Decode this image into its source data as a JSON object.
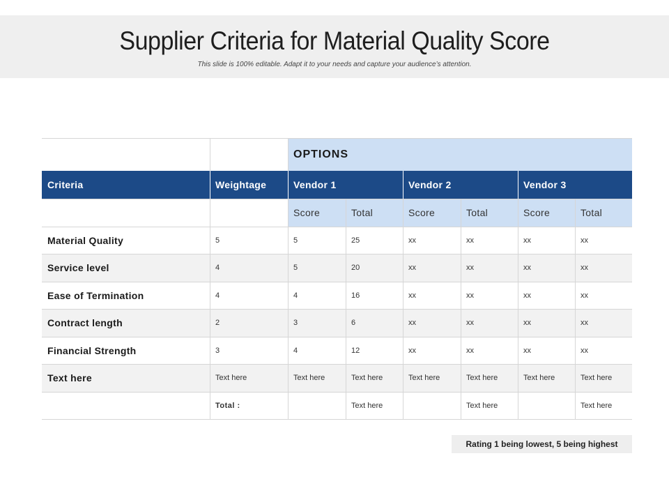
{
  "slide": {
    "title": "Supplier Criteria for Material Quality Score",
    "subtitle": "This slide is 100% editable. Adapt it to your needs and capture your audience’s attention."
  },
  "table": {
    "options_label": "OPTIONS",
    "headers": {
      "criteria": "Criteria",
      "weightage": "Weightage",
      "vendors": [
        "Vendor 1",
        "Vendor 2",
        "Vendor 3"
      ]
    },
    "subheaders": {
      "score": "Score",
      "total": "Total"
    },
    "rows": [
      {
        "criteria": "Material Quality",
        "weightage": "5",
        "values": [
          "5",
          "25",
          "xx",
          "xx",
          "xx",
          "xx"
        ]
      },
      {
        "criteria": "Service level",
        "weightage": "4",
        "values": [
          "5",
          "20",
          "xx",
          "xx",
          "xx",
          "xx"
        ]
      },
      {
        "criteria": "Ease of Termination",
        "weightage": "4",
        "values": [
          "4",
          "16",
          "xx",
          "xx",
          "xx",
          "xx"
        ]
      },
      {
        "criteria": "Contract length",
        "weightage": "2",
        "values": [
          "3",
          "6",
          "xx",
          "xx",
          "xx",
          "xx"
        ]
      },
      {
        "criteria": "Financial Strength",
        "weightage": "3",
        "values": [
          "4",
          "12",
          "xx",
          "xx",
          "xx",
          "xx"
        ]
      },
      {
        "criteria": "Text here",
        "weightage": "Text here",
        "values": [
          "Text here",
          "Text here",
          "Text here",
          "Text here",
          "Text here",
          "Text here"
        ]
      }
    ],
    "total_row": {
      "label": "Total :",
      "values": [
        "",
        "Text here",
        "",
        "Text here",
        "",
        "Text here"
      ]
    }
  },
  "note": "Rating 1 being lowest, 5 being highest",
  "colors": {
    "header_blue": "#1c4a87",
    "light_blue": "#cddff4",
    "row_gray": "#f2f2f2",
    "grid_line": "#d6d6d6"
  }
}
